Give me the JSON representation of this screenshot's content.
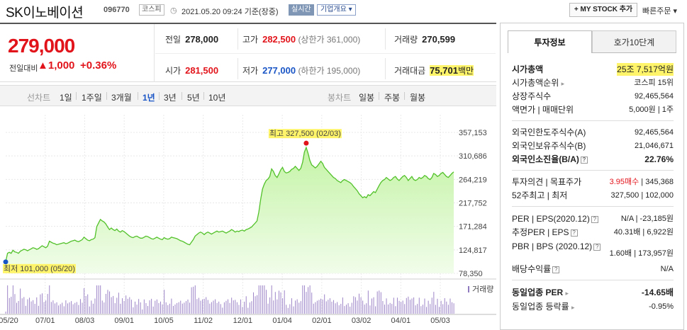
{
  "header": {
    "name": "SK이노베이션",
    "code": "096770",
    "market": "코스피",
    "datetime": "2021.05.20 09:24 기준(장중)",
    "live": "실시간",
    "overview": "기업개요 ▾",
    "mystock": "+ MY STOCK 추가",
    "quick_order": "빠른주문 ▾"
  },
  "price": {
    "now": "279,000",
    "prev_label": "전일대비",
    "change": "▲1,000",
    "percent": "+0.36%"
  },
  "stats": {
    "prev_label": "전일",
    "prev": "278,000",
    "high_label": "고가",
    "high": "282,500",
    "upper": "(상한가 361,000)",
    "volume_label": "거래량",
    "volume": "270,599",
    "open_label": "시가",
    "open": "281,500",
    "low_label": "저가",
    "low": "277,000",
    "lower": "(하한가 195,000)",
    "amount_label": "거래대금",
    "amount": "75,701",
    "amount_unit": "백만"
  },
  "period_bar": {
    "line_chart": "선차트",
    "periods": [
      "1일",
      "1주일",
      "3개월",
      "1년",
      "3년",
      "5년",
      "10년"
    ],
    "selected": "1년",
    "candle_chart": "봉차트",
    "candle_periods": [
      "일봉",
      "주봉",
      "월봉"
    ]
  },
  "chart_data": {
    "type": "area",
    "x_ticks": [
      "05/20",
      "07/01",
      "08/03",
      "09/01",
      "10/05",
      "11/02",
      "12/01",
      "01/04",
      "02/01",
      "03/02",
      "04/01",
      "05/03"
    ],
    "y_ticks": [
      357153,
      310686,
      264219,
      217752,
      171284,
      124817,
      78350
    ],
    "ylim": [
      78350,
      357153
    ],
    "high_label": "최고 327,500 (02/03)",
    "low_label": "최저 101,000 (05/20)",
    "volume_label": "거래량",
    "colors": {
      "line": "#52c12a",
      "fill_top": "#c4f3a6",
      "fill_bottom": "#f1fdea",
      "volume": "#9d85c8",
      "high": "#e2141b",
      "low": "#1a55c6"
    },
    "series": [
      {
        "values": [
          101000,
          118000,
          120000,
          118000,
          124000,
          121000,
          120000,
          118000,
          122000,
          124000,
          126000,
          125000,
          123000,
          125000,
          127000,
          129000,
          128000,
          126000,
          127000,
          130000,
          133000,
          131000,
          129000,
          132000,
          142000,
          140000,
          138000,
          137000,
          135000,
          136000,
          137000,
          138000,
          139000,
          137000,
          138000,
          140000,
          142000,
          143000,
          144000,
          142000,
          141000,
          143000,
          145000,
          150000,
          147000,
          144000,
          143000,
          145000,
          146000,
          149000,
          171000,
          178000,
          185000,
          182000,
          180000,
          176000,
          170000,
          165000,
          168000,
          165000,
          163000,
          166000,
          162000,
          160000,
          163000,
          161000,
          158000,
          155000,
          152000,
          150000,
          149000,
          151000,
          152000,
          150000,
          148000,
          148000,
          150000,
          152000,
          151000,
          149000,
          147000,
          146000,
          148000,
          150000,
          148000,
          146000,
          145000,
          149000,
          147000,
          146000,
          147000,
          150000,
          149000,
          148000,
          147000,
          145000,
          143000,
          142000,
          140000,
          138000,
          136000,
          135000,
          140000,
          145000,
          152000,
          155000,
          158000,
          160000,
          158000,
          155000,
          158000,
          160000,
          158000,
          156000,
          158000,
          160000,
          162000,
          160000,
          161000,
          162000,
          160000,
          158000,
          160000,
          162000,
          165000,
          163000,
          160000,
          162000,
          161000,
          163000,
          164000,
          162000,
          165000,
          166000,
          168000,
          170000,
          174000,
          178000,
          182000,
          200000,
          225000,
          245000,
          255000,
          262000,
          265000,
          270000,
          285000,
          280000,
          272000,
          268000,
          275000,
          283000,
          288000,
          280000,
          277000,
          278000,
          280000,
          284000,
          286000,
          290000,
          286000,
          282000,
          286000,
          298000,
          318000,
          327500,
          316000,
          302000,
          293000,
          290000,
          287000,
          290000,
          295000,
          300000,
          296000,
          288000,
          284000,
          280000,
          276000,
          272000,
          268000,
          266000,
          262000,
          260000,
          258000,
          262000,
          264000,
          262000,
          260000,
          258000,
          255000,
          250000,
          246000,
          242000,
          236000,
          232000,
          228000,
          230000,
          228000,
          234000,
          232000,
          236000,
          240000,
          238000,
          245000,
          252000,
          258000,
          262000,
          264000,
          268000,
          265000,
          262000,
          264000,
          268000,
          270000,
          265000,
          262000,
          266000,
          270000,
          272000,
          268000,
          262000,
          266000,
          270000,
          264000,
          262000,
          264000,
          268000,
          266000,
          268000,
          272000,
          270000,
          266000,
          264000,
          268000,
          276000,
          274000,
          270000,
          272000,
          276000,
          278000,
          274000,
          270000,
          268000,
          272000,
          276000,
          279000
        ]
      }
    ]
  },
  "invest": {
    "tab_active": "투자정보",
    "tab_other": "호가10단계",
    "mktcap_label": "시가총액",
    "mktcap": "25조 7,517억원",
    "rank_label": "시가총액순위",
    "rank": "코스피 15위",
    "shares_label": "상장주식수",
    "shares": "92,465,564",
    "par_label": "액면가 | 매매단위",
    "par": "5,000원 | 1주",
    "foreign_limit_label": "외국인한도주식수(A)",
    "foreign_limit": "92,465,564",
    "foreign_hold_label": "외국인보유주식수(B)",
    "foreign_hold": "21,046,671",
    "foreign_ratio_label": "외국인소진율(B/A)",
    "foreign_ratio": "22.76%",
    "opinion_label": "투자의견 | 목표주가",
    "opinion": "3.95매수",
    "target": "345,368",
    "w52_label": "52주최고 | 최저",
    "w52": "327,500 | 102,000",
    "per_label": "PER | EPS(2020.12)",
    "per": "N/A | -23,185원",
    "est_per_label": "추정PER | EPS",
    "est_per": "40.31배 | 6,922원",
    "pbr_label": "PBR | BPS (2020.12)",
    "pbr": "1.60배 | 173,957원",
    "div_label": "배당수익률",
    "div": "N/A",
    "ind_per_label": "동일업종 PER",
    "ind_per": "-14.65배",
    "ind_rate_label": "동일업종 등락률",
    "ind_rate": "-0.95%"
  }
}
